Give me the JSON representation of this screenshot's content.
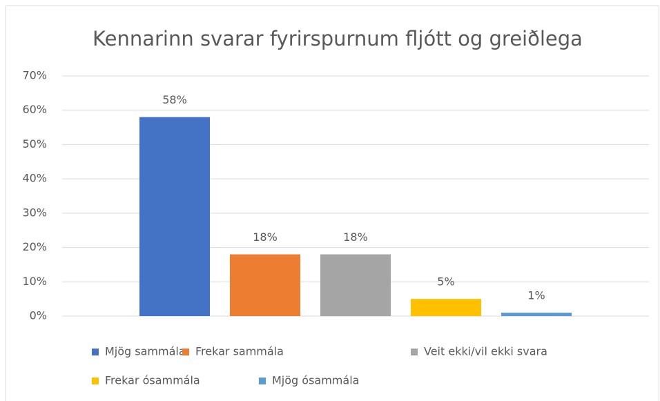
{
  "chart_data": {
    "type": "bar",
    "title": "Kennarinn svarar fyrirspurnum fljótt og greiðlega",
    "categories": [
      null
    ],
    "series": [
      {
        "name": "Mjög sammála",
        "color": "#4472c4",
        "values": [
          58
        ],
        "value_labels": [
          "58%"
        ]
      },
      {
        "name": "Frekar sammála",
        "color": "#ed7d31",
        "values": [
          18
        ],
        "value_labels": [
          "18%"
        ]
      },
      {
        "name": "Veit ekki/vil ekki svara",
        "color": "#a5a5a5",
        "values": [
          18
        ],
        "value_labels": [
          "18%"
        ]
      },
      {
        "name": "Frekar ósammála",
        "color": "#ffc000",
        "values": [
          5
        ],
        "value_labels": [
          "5%"
        ]
      },
      {
        "name": "Mjög ósammála",
        "color": "#5b9bd5",
        "values": [
          1
        ],
        "value_labels": [
          "1%"
        ]
      }
    ],
    "ylim": [
      0,
      70
    ],
    "yticks": [
      {
        "value": 0,
        "label": "0%"
      },
      {
        "value": 10,
        "label": "10%"
      },
      {
        "value": 20,
        "label": "20%"
      },
      {
        "value": 30,
        "label": "30%"
      },
      {
        "value": 40,
        "label": "40%"
      },
      {
        "value": 50,
        "label": "50%"
      },
      {
        "value": 60,
        "label": "60%"
      },
      {
        "value": 70,
        "label": "70%"
      }
    ],
    "grid": true,
    "legend": "bottom"
  }
}
